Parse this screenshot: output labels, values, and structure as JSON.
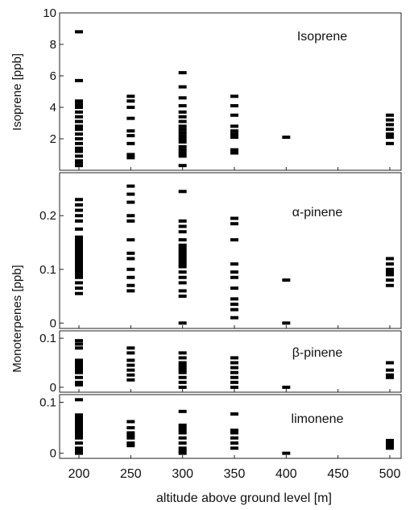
{
  "figure": {
    "xlabel": "altitude above ground level [m]",
    "x_ticks": [
      200,
      250,
      300,
      350,
      400,
      450,
      500
    ],
    "y_label_top": "Isoprene [ppb]",
    "y_label_bottom": "Monoterpenes [ppb]"
  },
  "chart_data": [
    {
      "type": "scatter",
      "title": "Isoprene",
      "ylim": [
        0,
        10
      ],
      "y_ticks": [
        2,
        4,
        6,
        8,
        10
      ],
      "x": [
        200,
        200,
        200,
        200,
        200,
        200,
        200,
        200,
        200,
        200,
        200,
        200,
        200,
        200,
        200,
        200,
        200,
        200,
        200,
        250,
        250,
        250,
        250,
        250,
        250,
        250,
        250,
        250,
        300,
        300,
        300,
        300,
        300,
        300,
        300,
        300,
        300,
        300,
        300,
        300,
        300,
        300,
        300,
        300,
        300,
        300,
        350,
        350,
        350,
        350,
        350,
        350,
        350,
        350,
        350,
        400,
        500,
        500,
        500,
        500,
        500,
        500,
        500
      ],
      "y": [
        8.8,
        5.7,
        4.4,
        4.2,
        4.0,
        3.7,
        3.4,
        3.1,
        2.8,
        2.6,
        2.3,
        2.0,
        1.7,
        1.4,
        1.2,
        0.9,
        0.6,
        0.5,
        0.3,
        4.7,
        4.4,
        4.0,
        3.3,
        2.5,
        2.2,
        1.7,
        1.0,
        0.8,
        6.2,
        5.3,
        4.6,
        4.1,
        3.7,
        3.4,
        3.1,
        2.8,
        2.6,
        2.4,
        2.2,
        2.0,
        1.8,
        1.5,
        1.3,
        1.1,
        0.9,
        0.3,
        4.7,
        4.1,
        3.5,
        2.8,
        2.5,
        2.3,
        2.1,
        1.3,
        1.1,
        2.1,
        3.5,
        3.2,
        2.9,
        2.6,
        2.3,
        2.1,
        1.7
      ]
    },
    {
      "type": "scatter",
      "title": "α-pinene",
      "ylim": [
        -0.01,
        0.28
      ],
      "y_ticks_labels": [
        "0",
        "0.1",
        "0.2"
      ],
      "y_ticks": [
        0,
        0.1,
        0.2
      ],
      "x": [
        200,
        200,
        200,
        200,
        200,
        200,
        200,
        200,
        200,
        200,
        200,
        200,
        200,
        200,
        200,
        200,
        200,
        200,
        200,
        200,
        200,
        200,
        200,
        200,
        200,
        250,
        250,
        250,
        250,
        250,
        250,
        250,
        250,
        250,
        250,
        250,
        250,
        300,
        300,
        300,
        300,
        300,
        300,
        300,
        300,
        300,
        300,
        300,
        300,
        300,
        300,
        300,
        300,
        300,
        300,
        300,
        300,
        350,
        350,
        350,
        350,
        350,
        350,
        350,
        350,
        350,
        350,
        350,
        400,
        400,
        500,
        500,
        500,
        500,
        500,
        500,
        500
      ],
      "y": [
        0.23,
        0.22,
        0.21,
        0.2,
        0.19,
        0.175,
        0.16,
        0.155,
        0.15,
        0.145,
        0.14,
        0.135,
        0.13,
        0.125,
        0.12,
        0.115,
        0.11,
        0.105,
        0.1,
        0.095,
        0.09,
        0.085,
        0.075,
        0.065,
        0.055,
        0.255,
        0.24,
        0.225,
        0.2,
        0.19,
        0.155,
        0.13,
        0.12,
        0.1,
        0.085,
        0.07,
        0.06,
        0.245,
        0.19,
        0.18,
        0.17,
        0.155,
        0.145,
        0.14,
        0.135,
        0.13,
        0.125,
        0.12,
        0.115,
        0.11,
        0.105,
        0.095,
        0.085,
        0.075,
        0.06,
        0.05,
        0.0,
        0.195,
        0.185,
        0.155,
        0.11,
        0.095,
        0.085,
        0.065,
        0.045,
        0.035,
        0.025,
        0.01,
        0.08,
        0.0,
        0.12,
        0.11,
        0.1,
        0.095,
        0.09,
        0.08,
        0.07
      ]
    },
    {
      "type": "scatter",
      "title": "β-pinene",
      "ylim": [
        -0.01,
        0.115
      ],
      "y_ticks_labels": [
        "0",
        "0.1"
      ],
      "y_ticks": [
        0,
        0.1
      ],
      "x": [
        200,
        200,
        200,
        200,
        200,
        200,
        200,
        200,
        200,
        200,
        200,
        200,
        250,
        250,
        250,
        250,
        250,
        250,
        250,
        300,
        300,
        300,
        300,
        300,
        300,
        300,
        300,
        300,
        300,
        350,
        350,
        350,
        350,
        350,
        350,
        350,
        400,
        500,
        500,
        500,
        500
      ],
      "y": [
        0.095,
        0.088,
        0.08,
        0.055,
        0.05,
        0.045,
        0.04,
        0.035,
        0.03,
        0.02,
        0.01,
        0.005,
        0.08,
        0.07,
        0.055,
        0.045,
        0.035,
        0.025,
        0.015,
        0.07,
        0.06,
        0.05,
        0.045,
        0.04,
        0.035,
        0.03,
        0.02,
        0.01,
        0.0,
        0.06,
        0.05,
        0.04,
        0.03,
        0.02,
        0.01,
        0.0,
        0.0,
        0.05,
        0.035,
        0.025,
        0.02
      ]
    },
    {
      "type": "scatter",
      "title": "limonene",
      "ylim": [
        -0.01,
        0.115
      ],
      "y_ticks_labels": [
        "0",
        "0.1"
      ],
      "y_ticks": [
        0,
        0.1
      ],
      "x": [
        200,
        200,
        200,
        200,
        200,
        200,
        200,
        200,
        200,
        200,
        200,
        200,
        200,
        200,
        200,
        250,
        250,
        250,
        250,
        250,
        250,
        250,
        300,
        300,
        300,
        300,
        300,
        300,
        300,
        300,
        300,
        300,
        350,
        350,
        350,
        350,
        350,
        350,
        400,
        500,
        500,
        500,
        500
      ],
      "y": [
        0.105,
        0.075,
        0.07,
        0.065,
        0.06,
        0.055,
        0.05,
        0.045,
        0.04,
        0.035,
        0.03,
        0.02,
        0.01,
        0.005,
        0.0,
        0.062,
        0.05,
        0.04,
        0.035,
        0.03,
        0.02,
        0.015,
        0.082,
        0.055,
        0.05,
        0.045,
        0.04,
        0.03,
        0.02,
        0.01,
        0.005,
        0.0,
        0.077,
        0.045,
        0.04,
        0.03,
        0.02,
        0.01,
        0.0,
        0.025,
        0.02,
        0.015,
        0.01
      ]
    }
  ]
}
